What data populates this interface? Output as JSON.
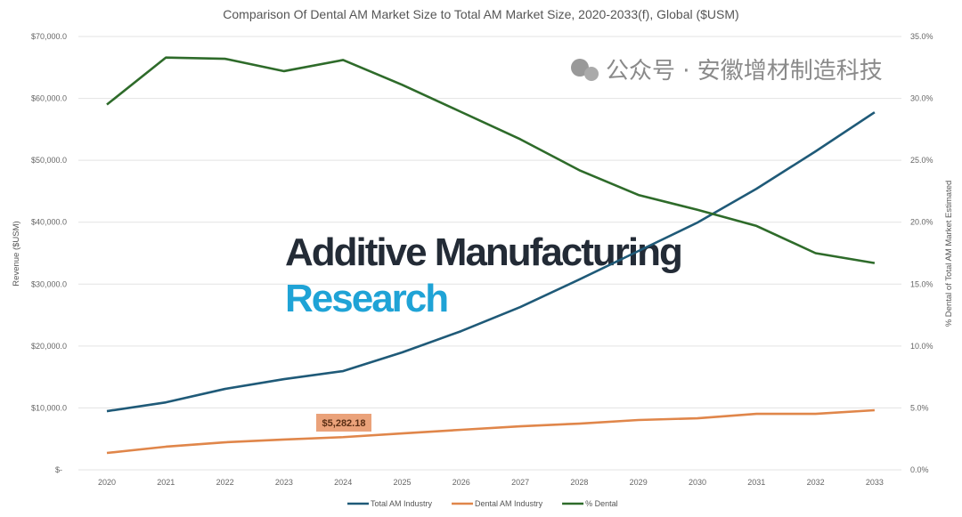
{
  "chart_data": {
    "type": "line",
    "title": "Comparison Of Dental AM Market Size to Total AM Market Size, 2020-2033(f), Global ($USM)",
    "ylabel": "Revenue ($USM)",
    "y2label": "% Dental of Total AM Market Estimated",
    "categories": [
      "2020",
      "2021",
      "2022",
      "2023",
      "2024",
      "2025",
      "2026",
      "2027",
      "2028",
      "2029",
      "2030",
      "2031",
      "2032",
      "2033"
    ],
    "ylim": [
      0,
      70000
    ],
    "y2lim": [
      0,
      35
    ],
    "yticks": [
      "$-",
      "$10,000.0",
      "$20,000.0",
      "$30,000.0",
      "$40,000.0",
      "$50,000.0",
      "$60,000.0",
      "$70,000.0"
    ],
    "y2ticks": [
      "0.0%",
      "5.0%",
      "10.0%",
      "15.0%",
      "20.0%",
      "25.0%",
      "30.0%",
      "35.0%"
    ],
    "grid": true,
    "legend": "bottom",
    "series": [
      {
        "name": "Total AM Industry",
        "axis": "left",
        "color": "#1f5a78",
        "values": [
          9480,
          10900,
          13070,
          14650,
          15950,
          18970,
          22410,
          26290,
          30750,
          35340,
          39940,
          45400,
          51440,
          57760
        ]
      },
      {
        "name": "Dental AM Industry",
        "axis": "left",
        "color": "#e0864a",
        "values": [
          2730,
          3740,
          4450,
          4890,
          5282.18,
          5890,
          6470,
          7040,
          7470,
          8050,
          8330,
          9050,
          9050,
          9630
        ]
      },
      {
        "name": "% Dental",
        "axis": "right",
        "color": "#2e6b2a",
        "values": [
          29.5,
          33.3,
          33.2,
          32.2,
          33.1,
          31.1,
          28.9,
          26.7,
          24.2,
          22.2,
          21.0,
          19.7,
          17.5,
          16.7
        ]
      }
    ],
    "annotations": [
      {
        "text": "$5,282.18",
        "series": "Dental AM Industry",
        "category": "2024",
        "color": "#eaa27a"
      }
    ]
  },
  "watermarks": {
    "logo_line1": "Additive Manufacturing",
    "logo_line2": "Research",
    "wechat": "公众号 · 安徽增材制造科技"
  }
}
